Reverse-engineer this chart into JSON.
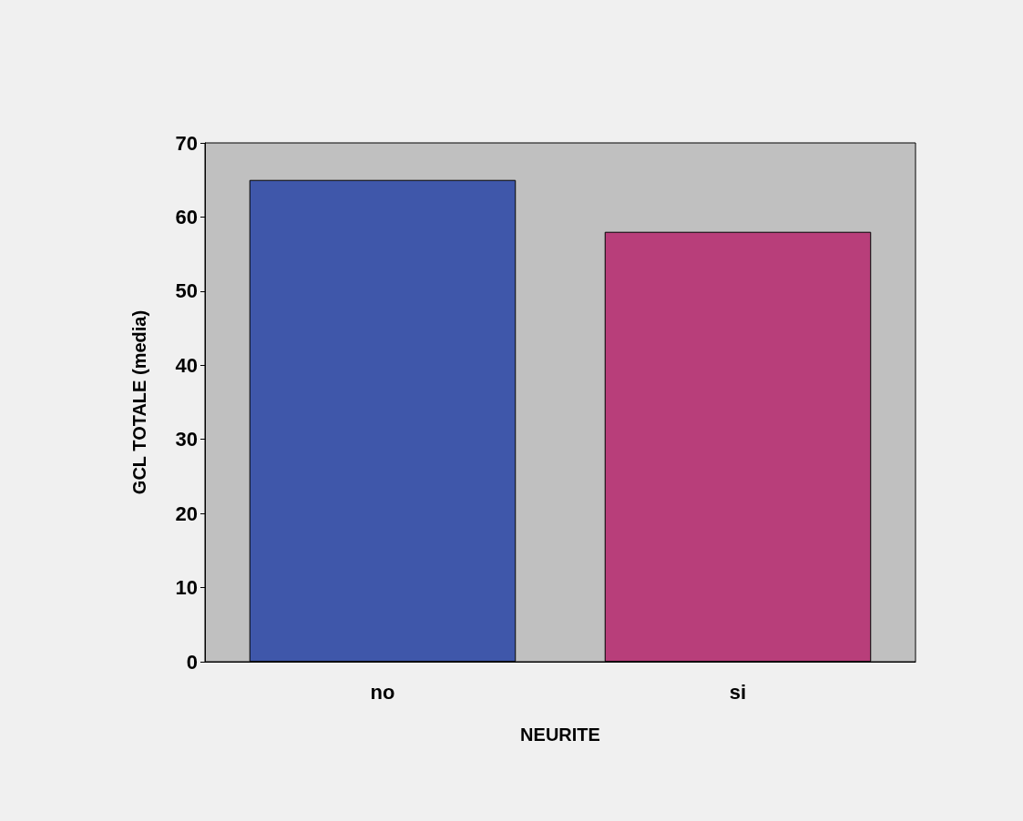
{
  "chart_data": {
    "type": "bar",
    "xlabel": "NEURITE",
    "ylabel": "GCL TOTALE (media)",
    "categories": [
      "no",
      "si"
    ],
    "values": [
      65,
      58
    ],
    "colors": [
      "#3f57aa",
      "#b83e7a"
    ],
    "ylim": [
      0,
      70
    ],
    "yticks": [
      0,
      10,
      20,
      30,
      40,
      50,
      60,
      70
    ],
    "grid": false
  }
}
